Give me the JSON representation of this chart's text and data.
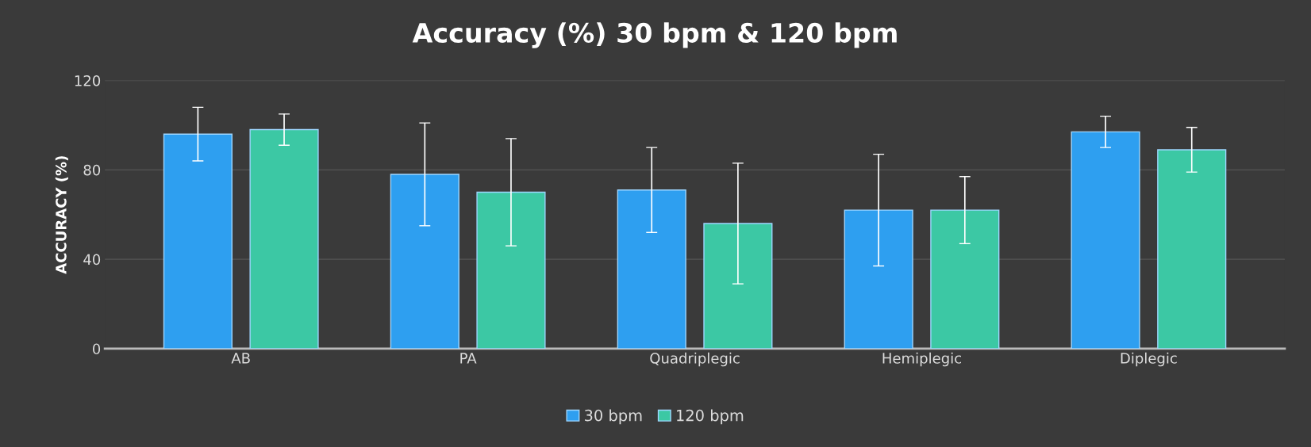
{
  "chart_data": {
    "type": "bar",
    "title": "Accuracy (%) 30 bpm & 120 bpm",
    "ylabel": "ACCURACY (%)",
    "categories": [
      "AB",
      "PA",
      "Quadriplegic",
      "Hemiplegic",
      "Diplegic"
    ],
    "series": [
      {
        "name": "30 bpm",
        "color": "#2e9ff0",
        "values": [
          96,
          78,
          71,
          62,
          97
        ],
        "errors": [
          12,
          23,
          19,
          25,
          7
        ]
      },
      {
        "name": "120 bpm",
        "color": "#3cc8a4",
        "values": [
          98,
          70,
          56,
          62,
          89
        ],
        "errors": [
          7,
          24,
          27,
          15,
          10
        ]
      }
    ],
    "ylim": [
      0,
      120
    ],
    "yticks": [
      0,
      40,
      80,
      120
    ],
    "grid": "y",
    "legend": "bottom"
  }
}
